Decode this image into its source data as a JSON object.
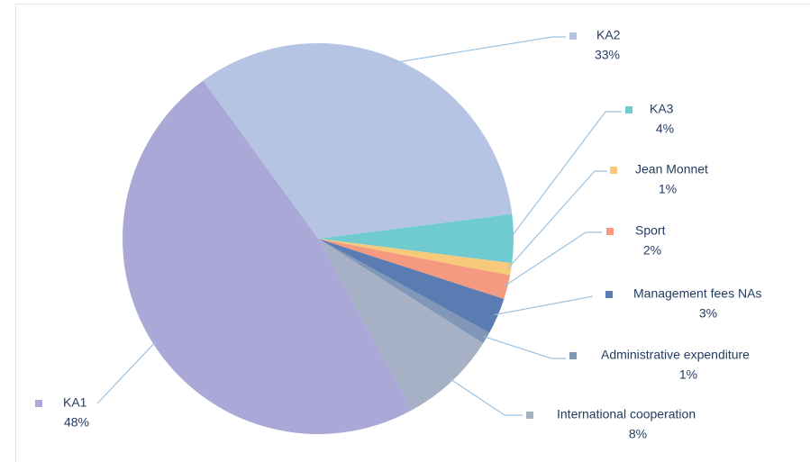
{
  "chart_data": {
    "type": "pie",
    "categories": [
      "KA2",
      "KA3",
      "Jean Monnet",
      "Sport",
      "Management fees NAs",
      "Administrative expenditure",
      "International cooperation",
      "KA1"
    ],
    "values": [
      33,
      4,
      1,
      2,
      3,
      1,
      8,
      48
    ],
    "value_labels": [
      "33%",
      "4%",
      "1%",
      "2%",
      "3%",
      "1%",
      "8%",
      "48%"
    ],
    "colors": [
      "#b4c4e2",
      "#6fcbd0",
      "#f8c97b",
      "#f49a80",
      "#5b7bb3",
      "#8097b8",
      "#a7b1c5",
      "#a9a8d6"
    ]
  }
}
